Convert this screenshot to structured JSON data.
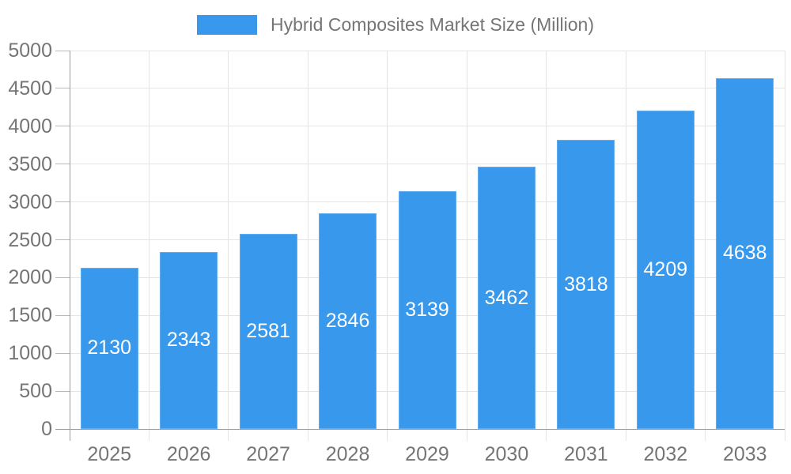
{
  "chart_data": {
    "type": "bar",
    "title": "Hybrid Composites Market Size (Million)",
    "categories": [
      "2025",
      "2026",
      "2027",
      "2028",
      "2029",
      "2030",
      "2031",
      "2032",
      "2033"
    ],
    "values": [
      2130,
      2343,
      2581,
      2846,
      3139,
      3462,
      3818,
      4209,
      4638
    ],
    "series": [
      {
        "name": "Hybrid Composites Market Size (Million)",
        "values": [
          2130,
          2343,
          2581,
          2846,
          3139,
          3462,
          3818,
          4209,
          4638
        ]
      }
    ],
    "xlabel": "",
    "ylabel": "",
    "ylim": [
      0,
      5000
    ],
    "ytick_step": 500,
    "grid": true,
    "legend_position": "top",
    "value_labels": "centered-inside-bars",
    "bar_color": "#3898EC",
    "value_label_color": "#ffffff",
    "axis_text_color": "#757575",
    "gridline_color": "#e4e4e4",
    "tick_color": "#b8b8b8",
    "axis_line_color": "#9c9c9c"
  }
}
